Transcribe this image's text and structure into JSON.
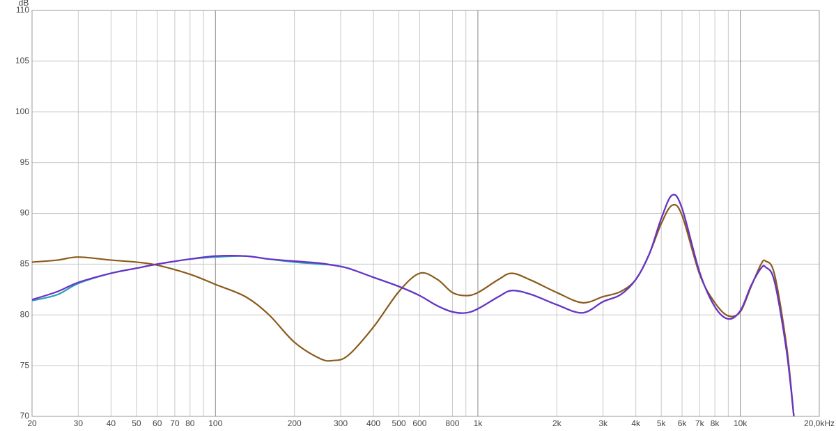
{
  "chart_data": {
    "type": "line",
    "ylabel": "dB",
    "xscale": "log",
    "grid": true,
    "x": [
      20,
      25,
      30,
      40,
      50,
      60,
      80,
      100,
      130,
      160,
      200,
      250,
      280,
      320,
      400,
      500,
      600,
      700,
      800,
      900,
      1000,
      1200,
      1350,
      1600,
      2000,
      2500,
      3000,
      3500,
      4000,
      4500,
      5000,
      5500,
      6000,
      7000,
      8000,
      9000,
      10000,
      11000,
      12000,
      12500,
      13500,
      15000,
      16000
    ],
    "series": [
      {
        "color": "#2a9fb8",
        "values": [
          81.4,
          82.0,
          83.1,
          84.1,
          84.6,
          85.0,
          85.5,
          85.7,
          85.8,
          85.5,
          85.2,
          85.0,
          84.9,
          84.6,
          83.7,
          82.8,
          81.9,
          80.9,
          80.3,
          80.2,
          80.6,
          81.8,
          82.4,
          82.0,
          81.0,
          80.2,
          81.3,
          82.0,
          83.5,
          86.0,
          89.5,
          91.8,
          90.5,
          84.2,
          80.8,
          79.6,
          80.4,
          82.9,
          84.6,
          84.7,
          83.3,
          76.5,
          70.0
        ]
      },
      {
        "color": "#8b5a1a",
        "values": [
          85.2,
          85.4,
          85.7,
          85.4,
          85.2,
          84.9,
          84.0,
          83.0,
          81.8,
          80.0,
          77.3,
          75.7,
          75.5,
          76.0,
          78.8,
          82.3,
          84.1,
          83.5,
          82.2,
          81.9,
          82.2,
          83.5,
          84.1,
          83.4,
          82.2,
          81.2,
          81.8,
          82.3,
          83.5,
          86.0,
          89.0,
          90.8,
          89.8,
          84.0,
          81.2,
          79.9,
          80.3,
          82.8,
          85.0,
          85.3,
          84.0,
          77.0,
          70.0
        ]
      },
      {
        "color": "#6a32c8",
        "values": [
          81.5,
          82.3,
          83.2,
          84.1,
          84.6,
          85.0,
          85.5,
          85.8,
          85.8,
          85.5,
          85.3,
          85.1,
          84.9,
          84.6,
          83.7,
          82.8,
          81.9,
          80.9,
          80.3,
          80.2,
          80.6,
          81.8,
          82.4,
          82.0,
          81.0,
          80.2,
          81.3,
          82.0,
          83.5,
          86.0,
          89.5,
          91.8,
          90.5,
          84.2,
          80.8,
          79.6,
          80.4,
          82.9,
          84.6,
          84.7,
          83.3,
          76.5,
          70.0
        ]
      }
    ],
    "xlim": [
      20,
      20000
    ],
    "ylim": [
      70,
      110
    ],
    "xticks": [
      20,
      30,
      40,
      50,
      60,
      70,
      80,
      100,
      200,
      300,
      400,
      500,
      600,
      800,
      {
        "value": 1000,
        "label": "1k"
      },
      {
        "value": 2000,
        "label": "2k"
      },
      {
        "value": 3000,
        "label": "3k"
      },
      {
        "value": 4000,
        "label": "4k"
      },
      {
        "value": 5000,
        "label": "5k"
      },
      {
        "value": 6000,
        "label": "6k"
      },
      {
        "value": 7000,
        "label": "7k"
      },
      {
        "value": 8000,
        "label": "8k"
      },
      {
        "value": 10000,
        "label": "10k"
      },
      {
        "value": 20000,
        "label": "20,0kHz"
      }
    ],
    "xminorticks": [
      90,
      900,
      9000
    ],
    "yticks": [
      70,
      75,
      80,
      85,
      90,
      95,
      100,
      105,
      110
    ]
  }
}
